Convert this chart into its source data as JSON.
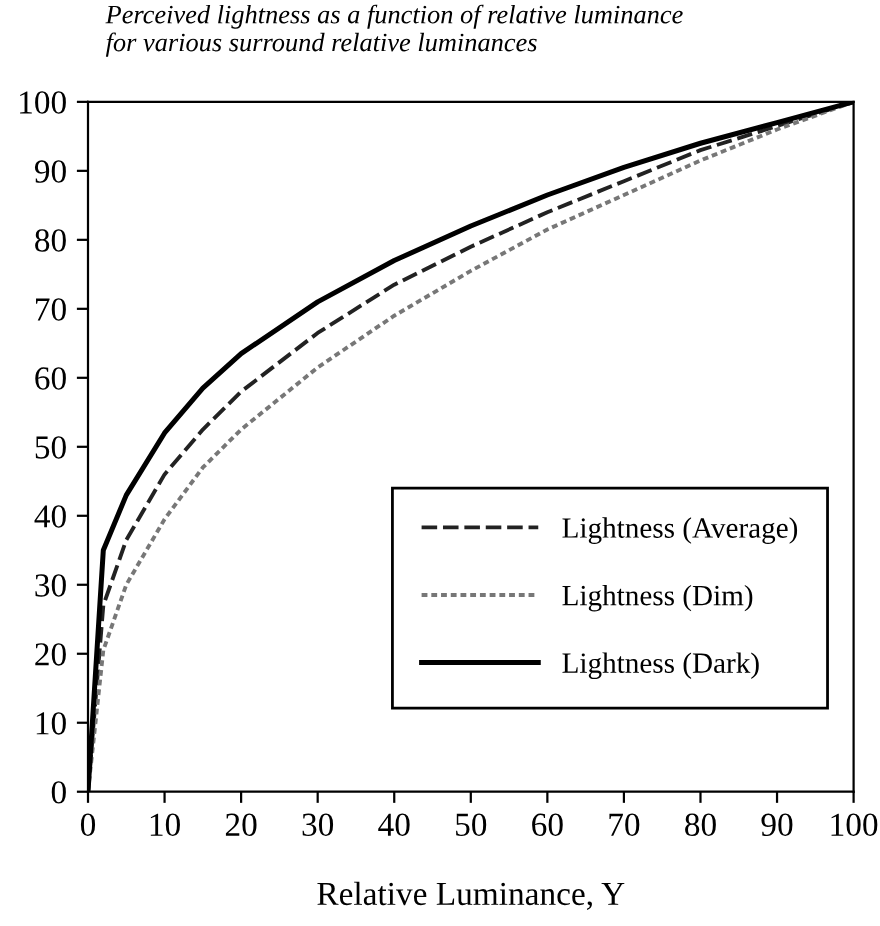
{
  "chart_data": {
    "type": "line",
    "title": "Perceived lightness as a function of relative luminance\nfor various surround relative luminances",
    "xlabel": "Relative Luminance, Y",
    "x": [
      0,
      2,
      5,
      10,
      15,
      20,
      30,
      40,
      50,
      60,
      70,
      80,
      90,
      100
    ],
    "series": [
      {
        "name": "Lightness (Average)",
        "color": "#222222",
        "line_style": "dashed",
        "values": [
          0,
          27,
          36.5,
          46,
          52.5,
          58,
          66.5,
          73.5,
          79,
          84,
          88.5,
          93,
          96.5,
          100
        ]
      },
      {
        "name": "Lightness (Dim)",
        "color": "#777777",
        "line_style": "dotted",
        "values": [
          0,
          20.5,
          30,
          39.5,
          47,
          52.5,
          61.5,
          69,
          75.5,
          81.5,
          86.5,
          91.5,
          96,
          100
        ]
      },
      {
        "name": "Lightness (Dark)",
        "color": "#000000",
        "line_style": "solid",
        "values": [
          0,
          35,
          43,
          52,
          58.5,
          63.5,
          71,
          77,
          82,
          86.5,
          90.5,
          94,
          97,
          100
        ]
      }
    ],
    "xlim": [
      0,
      100
    ],
    "xticks": [
      0,
      10,
      20,
      30,
      40,
      50,
      60,
      70,
      80,
      90,
      100
    ],
    "ylim": [
      0,
      100
    ],
    "yticks": [
      0,
      10,
      20,
      30,
      40,
      50,
      60,
      70,
      80,
      90,
      100
    ],
    "grid": false,
    "legend": "bottom right",
    "marker": "none"
  }
}
